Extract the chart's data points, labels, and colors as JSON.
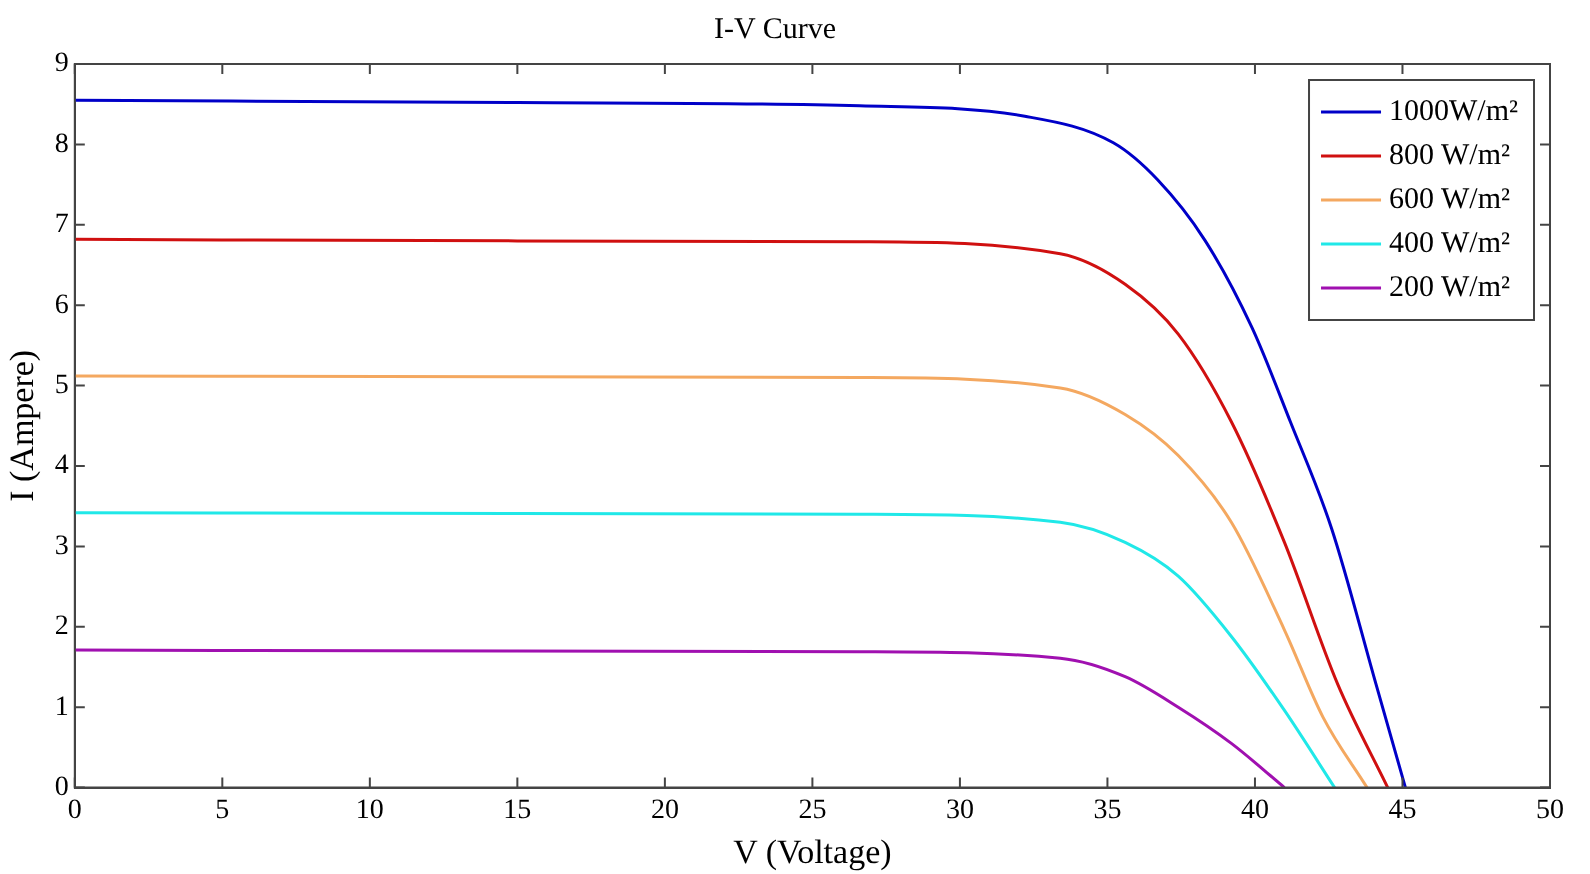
{
  "chart_data": {
    "type": "line",
    "title": "I-V Curve",
    "xlabel": "V (Voltage)",
    "ylabel": "I (Ampere)",
    "xlim": [
      0,
      50
    ],
    "ylim": [
      0,
      9
    ],
    "xticks": [
      0,
      5,
      10,
      15,
      20,
      25,
      30,
      35,
      40,
      45,
      50
    ],
    "yticks": [
      0,
      1,
      2,
      3,
      4,
      5,
      6,
      7,
      8,
      9
    ],
    "grid": false,
    "legend": "top right",
    "marker": "none",
    "line_style": "solid",
    "series": [
      {
        "name": "1000W/m²",
        "color": "#0000c8",
        "x": [
          0,
          15,
          26.6,
          32.2,
          35.2,
          36.7,
          38.3,
          39.9,
          41.2,
          42.6,
          44.1,
          45.1
        ],
        "values": [
          8.55,
          8.52,
          8.48,
          8.35,
          8.02,
          7.56,
          6.81,
          5.72,
          4.55,
          3.22,
          1.29,
          0
        ]
      },
      {
        "name": "800 W/m²",
        "color": "#d01010",
        "x": [
          0,
          15,
          26.6,
          33.4,
          35.6,
          37.4,
          39.2,
          41.0,
          42.8,
          44.5
        ],
        "values": [
          6.82,
          6.8,
          6.79,
          6.64,
          6.26,
          5.64,
          4.55,
          3.05,
          1.29,
          0
        ]
      },
      {
        "name": "600 W/m²",
        "color": "#f4a860",
        "x": [
          0,
          15,
          26.6,
          33.4,
          35.6,
          37.4,
          39.2,
          41.0,
          42.3,
          43.8
        ],
        "values": [
          5.12,
          5.11,
          5.1,
          4.97,
          4.64,
          4.13,
          3.3,
          1.96,
          0.88,
          0
        ]
      },
      {
        "name": "400 W/m²",
        "color": "#20e8e8",
        "x": [
          0,
          15,
          26.6,
          33.4,
          35.6,
          37.4,
          39.2,
          41.0,
          42.7
        ],
        "values": [
          3.42,
          3.41,
          3.4,
          3.3,
          3.05,
          2.63,
          1.88,
          0.96,
          0
        ]
      },
      {
        "name": "200 W/m²",
        "color": "#a010b0",
        "x": [
          0,
          15,
          26.6,
          33.4,
          35.6,
          37.4,
          39.2,
          41.0
        ],
        "values": [
          1.71,
          1.7,
          1.69,
          1.61,
          1.38,
          1.0,
          0.55,
          0
        ]
      }
    ]
  }
}
